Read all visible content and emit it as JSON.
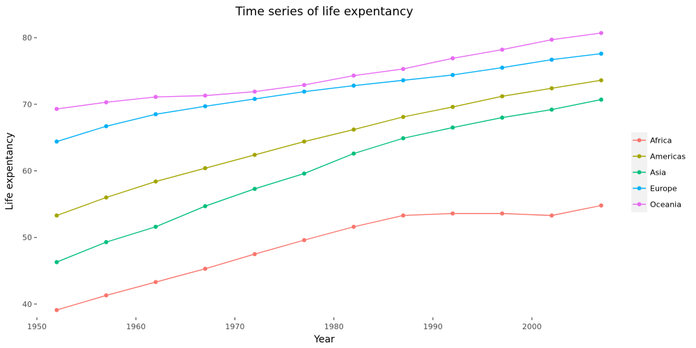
{
  "chart_data": {
    "type": "line",
    "title": "Time series of life expentancy",
    "xlabel": "Year",
    "ylabel": "Life expentancy",
    "x": [
      1952,
      1957,
      1962,
      1967,
      1972,
      1977,
      1982,
      1987,
      1992,
      1997,
      2002,
      2007
    ],
    "xlim": [
      1950,
      2008
    ],
    "ylim": [
      38,
      82
    ],
    "xticks": [
      1950,
      1960,
      1970,
      1980,
      1990,
      2000
    ],
    "yticks": [
      40,
      50,
      60,
      70,
      80
    ],
    "grid": false,
    "legend_position": "right",
    "markers": true,
    "series": [
      {
        "name": "Africa",
        "color": "#F8766D",
        "values": [
          39.1,
          41.3,
          43.3,
          45.3,
          47.5,
          49.6,
          51.6,
          53.3,
          53.6,
          53.6,
          53.3,
          54.8
        ]
      },
      {
        "name": "Americas",
        "color": "#A3A500",
        "values": [
          53.3,
          56.0,
          58.4,
          60.4,
          62.4,
          64.4,
          66.2,
          68.1,
          69.6,
          71.2,
          72.4,
          73.6
        ]
      },
      {
        "name": "Asia",
        "color": "#00BF7D",
        "values": [
          46.3,
          49.3,
          51.6,
          54.7,
          57.3,
          59.6,
          62.6,
          64.9,
          66.5,
          68.0,
          69.2,
          70.7
        ]
      },
      {
        "name": "Europe",
        "color": "#00B0F6",
        "values": [
          64.4,
          66.7,
          68.5,
          69.7,
          70.8,
          71.9,
          72.8,
          73.6,
          74.4,
          75.5,
          76.7,
          77.6
        ]
      },
      {
        "name": "Oceania",
        "color": "#E76BF3",
        "values": [
          69.3,
          70.3,
          71.1,
          71.3,
          71.9,
          72.9,
          74.3,
          75.3,
          76.9,
          78.2,
          79.7,
          80.7
        ]
      }
    ]
  }
}
